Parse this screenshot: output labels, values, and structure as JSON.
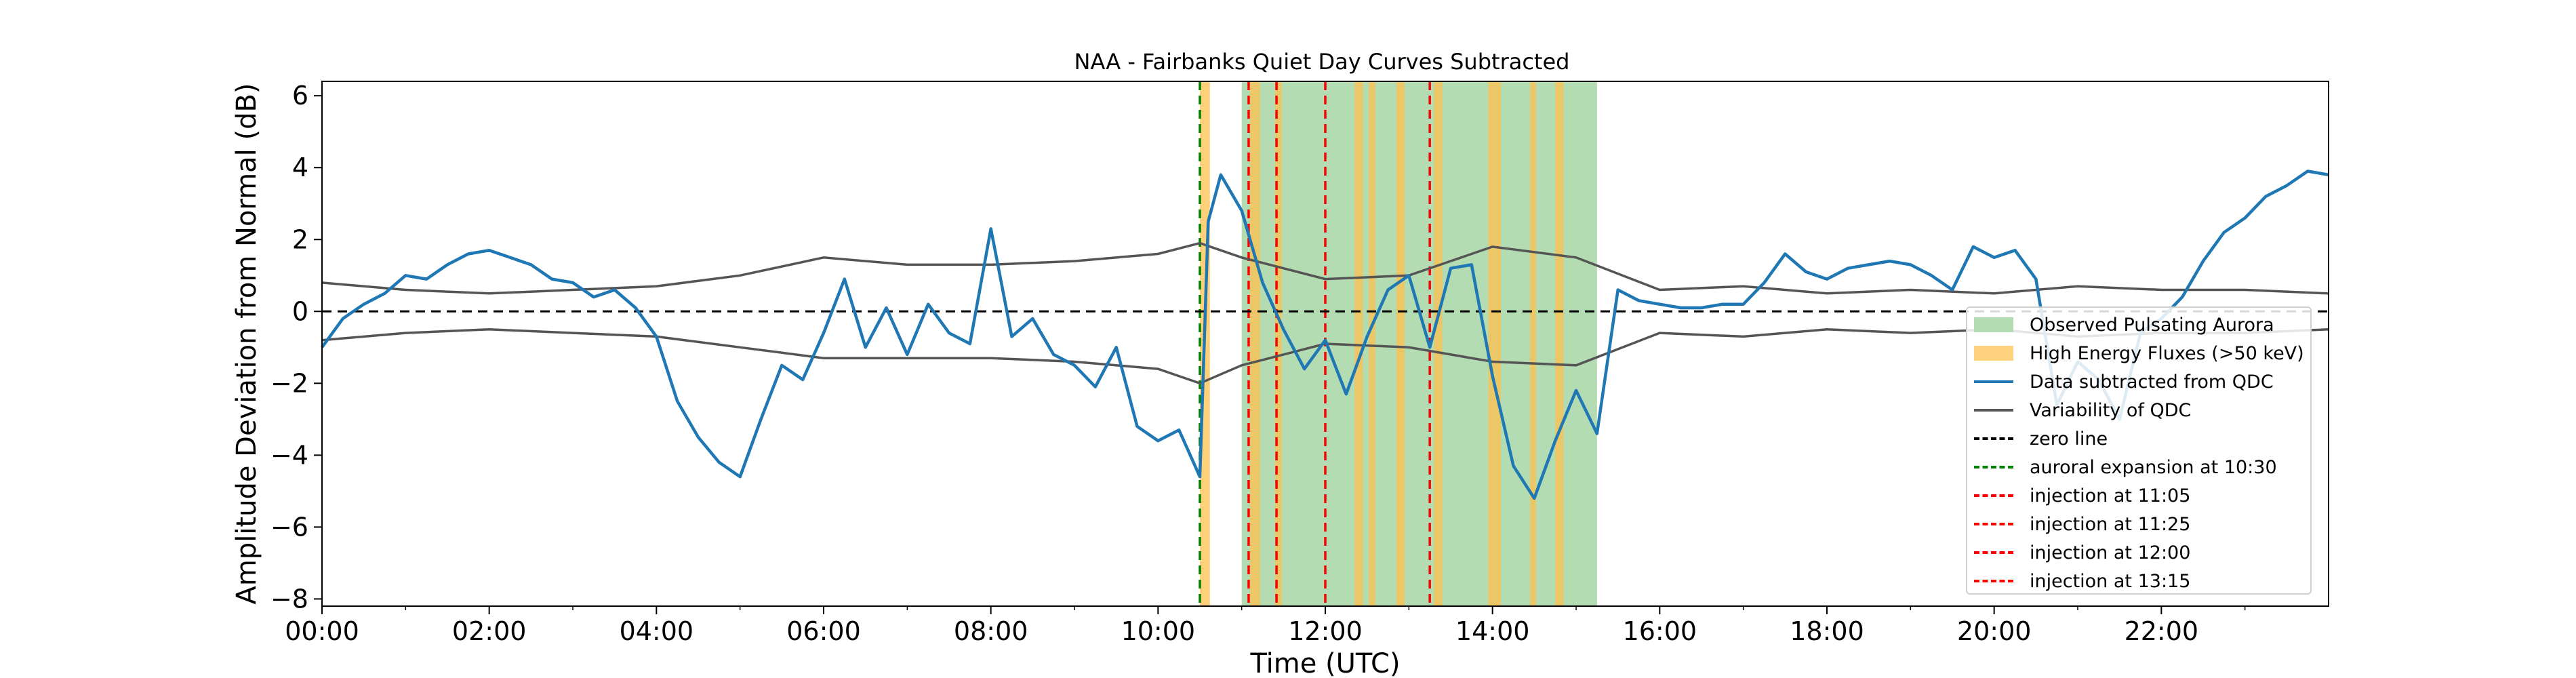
{
  "chart_data": {
    "type": "line",
    "title": "NAA - Fairbanks Quiet Day Curves Subtracted",
    "xlabel": "Time (UTC)",
    "ylabel": "Amplitude Deviation from Normal (dB)",
    "xlim": [
      0,
      24
    ],
    "ylim": [
      -8.2,
      6.4
    ],
    "x_ticks": [
      "00:00",
      "02:00",
      "04:00",
      "06:00",
      "08:00",
      "10:00",
      "12:00",
      "14:00",
      "16:00",
      "18:00",
      "20:00",
      "22:00"
    ],
    "y_ticks": [
      -8,
      -6,
      -4,
      -2,
      0,
      2,
      4,
      6
    ],
    "grid": false,
    "legend_position": "lower-right",
    "colors": {
      "pulsating": "#74bf74",
      "high_energy": "#ffc04d",
      "data": "#1f77b4",
      "qdc": "#555555",
      "zero": "#000000",
      "expansion": "#008000",
      "injection": "#ff0000"
    },
    "pulsating_aurora_intervals": [
      [
        11.0,
        15.25
      ]
    ],
    "high_energy_intervals": [
      [
        10.5,
        10.62
      ],
      [
        11.1,
        11.22
      ],
      [
        11.4,
        11.48
      ],
      [
        12.35,
        12.45
      ],
      [
        12.52,
        12.6
      ],
      [
        12.85,
        12.95
      ],
      [
        13.3,
        13.4
      ],
      [
        13.95,
        14.1
      ],
      [
        14.45,
        14.52
      ],
      [
        14.75,
        14.85
      ]
    ],
    "expansion_times": [
      10.5
    ],
    "injection_times": [
      11.0833,
      11.4167,
      12.0,
      13.25
    ],
    "data_series": {
      "name": "Data subtracted from QDC",
      "x": [
        0.0,
        0.25,
        0.5,
        0.75,
        1.0,
        1.25,
        1.5,
        1.75,
        2.0,
        2.25,
        2.5,
        2.75,
        3.0,
        3.25,
        3.5,
        3.75,
        4.0,
        4.25,
        4.5,
        4.75,
        5.0,
        5.25,
        5.5,
        5.75,
        6.0,
        6.25,
        6.5,
        6.75,
        7.0,
        7.25,
        7.5,
        7.75,
        8.0,
        8.25,
        8.5,
        8.75,
        9.0,
        9.25,
        9.5,
        9.75,
        10.0,
        10.25,
        10.5,
        10.6,
        10.75,
        11.0,
        11.25,
        11.5,
        11.75,
        12.0,
        12.25,
        12.5,
        12.75,
        13.0,
        13.25,
        13.5,
        13.75,
        14.0,
        14.25,
        14.5,
        14.75,
        15.0,
        15.25,
        15.5,
        15.75,
        16.0,
        16.25,
        16.5,
        16.75,
        17.0,
        17.25,
        17.5,
        17.75,
        18.0,
        18.25,
        18.5,
        18.75,
        19.0,
        19.25,
        19.5,
        19.75,
        20.0,
        20.25,
        20.5,
        20.75,
        21.0,
        21.25,
        21.5,
        21.75,
        22.0,
        22.25,
        22.5,
        22.75,
        23.0,
        23.25,
        23.5,
        23.75,
        24.0
      ],
      "y": [
        -1.0,
        -0.2,
        0.2,
        0.5,
        1.0,
        0.9,
        1.3,
        1.6,
        1.7,
        1.5,
        1.3,
        0.9,
        0.8,
        0.4,
        0.6,
        0.1,
        -0.7,
        -2.5,
        -3.5,
        -4.2,
        -4.6,
        -3.0,
        -1.5,
        -1.9,
        -0.6,
        0.9,
        -1.0,
        0.1,
        -1.2,
        0.2,
        -0.6,
        -0.9,
        2.3,
        -0.7,
        -0.2,
        -1.2,
        -1.5,
        -2.1,
        -1.0,
        -3.2,
        -3.6,
        -3.3,
        -4.6,
        2.5,
        3.8,
        2.8,
        0.8,
        -0.5,
        -1.6,
        -0.8,
        -2.3,
        -0.7,
        0.6,
        1.0,
        -1.0,
        1.2,
        1.3,
        -1.8,
        -4.3,
        -5.2,
        -3.6,
        -2.2,
        -3.4,
        0.6,
        0.3,
        0.2,
        0.1,
        0.1,
        0.2,
        0.2,
        0.8,
        1.6,
        1.1,
        0.9,
        1.2,
        1.3,
        1.4,
        1.3,
        1.0,
        0.6,
        1.8,
        1.5,
        1.7,
        0.9,
        -2.6,
        -1.4,
        -1.9,
        -3.0,
        -0.6,
        -0.2,
        0.4,
        1.4,
        2.2,
        2.6,
        3.2,
        3.5,
        3.9,
        3.8
      ]
    },
    "qdc_upper": {
      "x": [
        0,
        1,
        2,
        3,
        4,
        5,
        6,
        7,
        8,
        9,
        10,
        10.5,
        11,
        12,
        13,
        14,
        15,
        16,
        17,
        18,
        19,
        20,
        21,
        22,
        23,
        24
      ],
      "y": [
        0.8,
        0.6,
        0.5,
        0.6,
        0.7,
        1.0,
        1.5,
        1.3,
        1.3,
        1.4,
        1.6,
        1.9,
        1.5,
        0.9,
        1.0,
        1.8,
        1.5,
        0.6,
        0.7,
        0.5,
        0.6,
        0.5,
        0.7,
        0.6,
        0.6,
        0.5
      ]
    },
    "qdc_lower": {
      "x": [
        0,
        1,
        2,
        3,
        4,
        5,
        6,
        7,
        8,
        9,
        10,
        10.5,
        11,
        12,
        13,
        14,
        15,
        16,
        17,
        18,
        19,
        20,
        21,
        22,
        23,
        24
      ],
      "y": [
        -0.8,
        -0.6,
        -0.5,
        -0.6,
        -0.7,
        -1.0,
        -1.3,
        -1.3,
        -1.3,
        -1.4,
        -1.6,
        -2.0,
        -1.5,
        -0.9,
        -1.0,
        -1.4,
        -1.5,
        -0.6,
        -0.7,
        -0.5,
        -0.6,
        -0.5,
        -0.7,
        -0.6,
        -0.6,
        -0.5
      ]
    }
  },
  "legend": {
    "items": [
      {
        "label": "Observed Pulsating Aurora"
      },
      {
        "label": "High Energy Fluxes (>50 keV)"
      },
      {
        "label": "Data subtracted from QDC"
      },
      {
        "label": "Variability of QDC"
      },
      {
        "label": "zero line"
      },
      {
        "label": "auroral expansion at 10:30"
      },
      {
        "label": "injection at 11:05"
      },
      {
        "label": "injection at 11:25"
      },
      {
        "label": "injection at 12:00"
      },
      {
        "label": "injection at 13:15"
      }
    ]
  }
}
